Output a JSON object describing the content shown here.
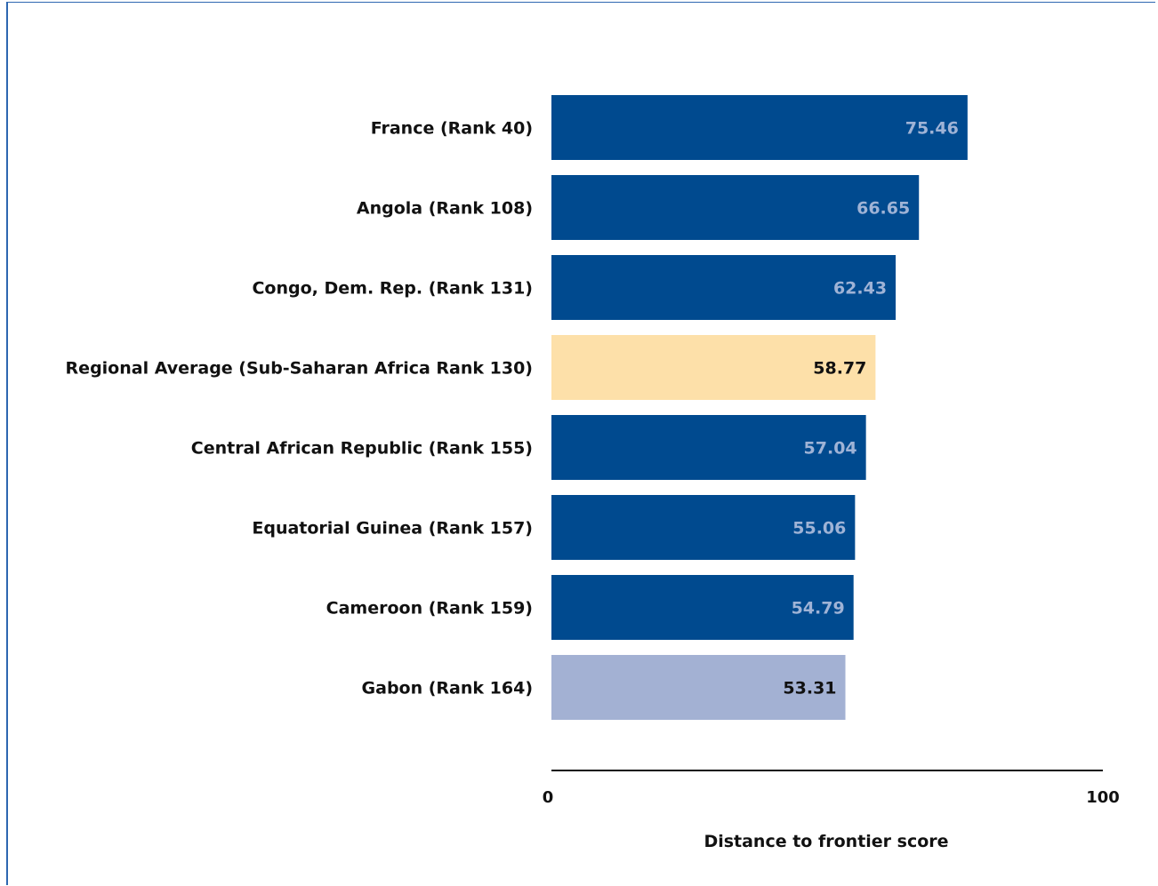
{
  "chart_data": {
    "type": "bar",
    "orientation": "horizontal",
    "categories": [
      "France (Rank 40)",
      "Angola (Rank 108)",
      "Congo, Dem. Rep. (Rank 131)",
      "Regional Average (Sub-Saharan Africa Rank 130)",
      "Central African Republic (Rank 155)",
      "Equatorial Guinea (Rank 157)",
      "Cameroon (Rank 159)",
      "Gabon (Rank 164)"
    ],
    "values": [
      75.46,
      66.65,
      62.43,
      58.77,
      57.04,
      55.06,
      54.79,
      53.31
    ],
    "value_labels": [
      "75.46",
      "66.65",
      "62.43",
      "58.77",
      "57.04",
      "55.06",
      "54.79",
      "53.31"
    ],
    "bar_colors": [
      "#004a8f",
      "#004a8f",
      "#004a8f",
      "#fde0a9",
      "#004a8f",
      "#004a8f",
      "#004a8f",
      "#a3b1d3"
    ],
    "value_label_colors": [
      "#9fb3d6",
      "#9fb3d6",
      "#9fb3d6",
      "#111111",
      "#9fb3d6",
      "#9fb3d6",
      "#9fb3d6",
      "#111111"
    ],
    "xlim": [
      0,
      100
    ],
    "x_ticks": [
      "0",
      "100"
    ],
    "xlabel": "Distance to frontier score",
    "grid": false,
    "legend": "none"
  }
}
